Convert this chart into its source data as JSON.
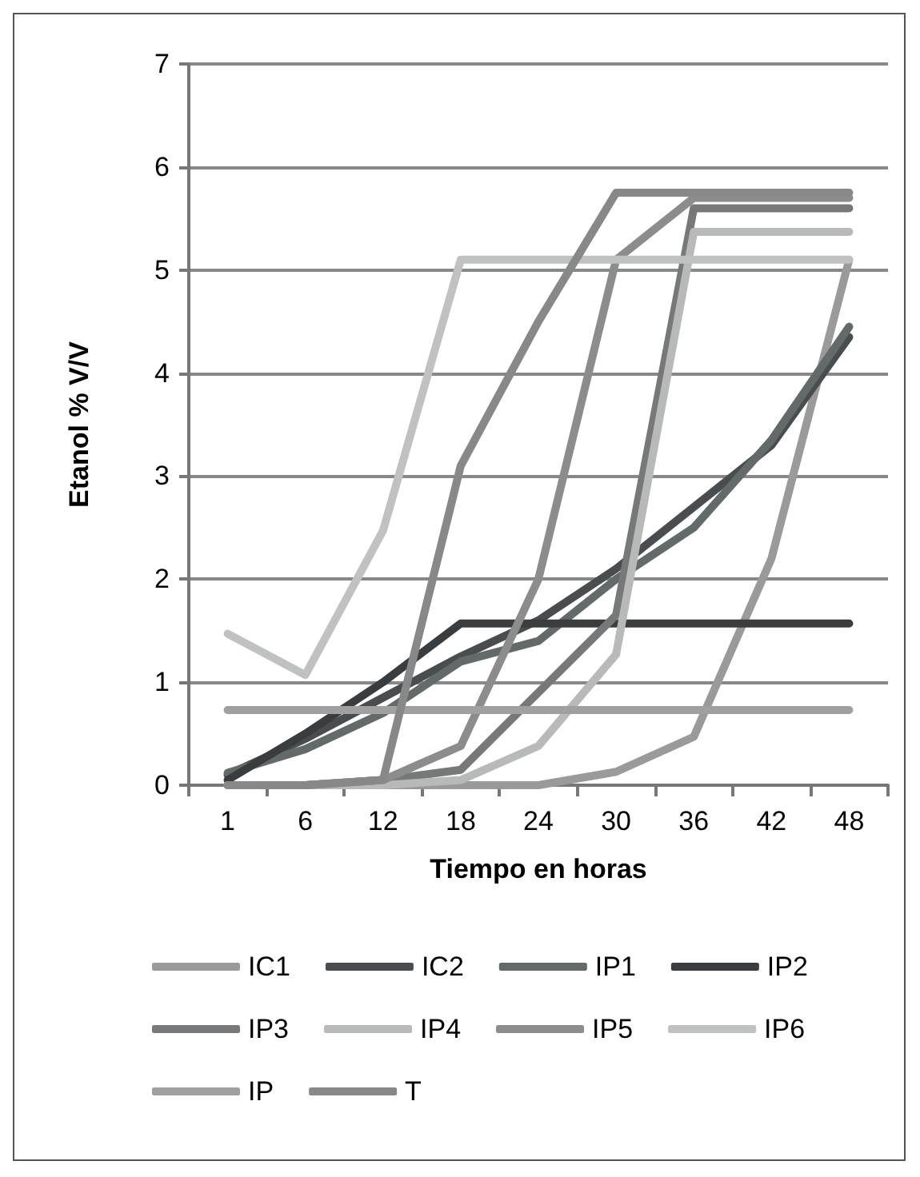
{
  "chart_data": {
    "type": "line",
    "xlabel": "Tiempo en horas",
    "ylabel": "Etanol % V/V",
    "categories": [
      "1",
      "6",
      "12",
      "18",
      "24",
      "30",
      "36",
      "42",
      "48"
    ],
    "ylim": [
      0,
      7
    ],
    "yticks": [
      0,
      1,
      2,
      3,
      4,
      5,
      6,
      7
    ],
    "grid": "y",
    "legend": "bottom",
    "marker": "none",
    "line_style": "solid",
    "series": [
      {
        "name": "IC1",
        "color": "#9a9a9a",
        "values": [
          0,
          0,
          0,
          0,
          0,
          0.13,
          0.47,
          2.2,
          5.1
        ]
      },
      {
        "name": "IC2",
        "color": "#4a4d4f",
        "values": [
          0.1,
          0.45,
          0.85,
          1.25,
          1.6,
          2.1,
          2.7,
          3.3,
          4.35
        ]
      },
      {
        "name": "IP1",
        "color": "#646a6a",
        "values": [
          0.12,
          0.35,
          0.7,
          1.2,
          1.4,
          2.0,
          2.5,
          3.35,
          4.45
        ]
      },
      {
        "name": "IP2",
        "color": "#3a3d3f",
        "values": [
          0.05,
          0.5,
          1.0,
          1.57,
          1.57,
          1.57,
          1.57,
          1.57,
          1.57
        ]
      },
      {
        "name": "IP3",
        "color": "#767879",
        "values": [
          0,
          0,
          0.05,
          0.15,
          0.9,
          1.65,
          5.6,
          5.6,
          5.6
        ]
      },
      {
        "name": "IP4",
        "color": "#b8baba",
        "values": [
          0,
          0,
          0,
          0.05,
          0.38,
          1.27,
          5.37,
          5.37,
          5.37
        ]
      },
      {
        "name": "IP5",
        "color": "#8c8c8c",
        "values": [
          0,
          0,
          0.05,
          0.38,
          2.0,
          5.1,
          5.7,
          5.7,
          5.7
        ]
      },
      {
        "name": "IP6",
        "color": "#c0c2c2",
        "values": [
          1.47,
          1.07,
          2.47,
          5.1,
          5.1,
          5.1,
          5.1,
          5.1,
          5.1
        ]
      },
      {
        "name": "IP",
        "color": "#a0a0a0",
        "values": [
          0.73,
          0.73,
          0.73,
          0.73,
          0.73,
          0.73,
          0.73,
          0.73,
          0.73
        ]
      },
      {
        "name": "T",
        "color": "#888888",
        "values": [
          0,
          0,
          0.05,
          3.1,
          4.5,
          5.75,
          5.75,
          5.75,
          5.75
        ]
      }
    ]
  }
}
